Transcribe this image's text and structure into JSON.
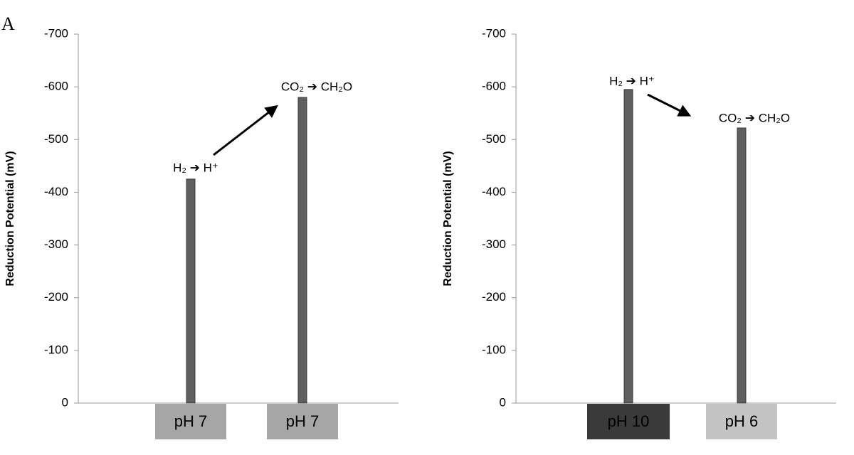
{
  "panel_label": "A",
  "chart_data": [
    {
      "type": "bar",
      "y_label": "Reduction Potential (mV)",
      "categories": [
        "pH 7",
        "pH 7"
      ],
      "values": [
        -425,
        -580
      ],
      "category_colors": [
        "#a6a6a6",
        "#a6a6a6"
      ],
      "category_text_colors": [
        "#000000",
        "#000000"
      ],
      "color": "#5f5f5f",
      "ylim": [
        0,
        -700
      ],
      "yticks": [
        0,
        -100,
        -200,
        -300,
        -400,
        -500,
        -600,
        -700
      ],
      "annotations": [
        "H₂ ➔ H⁺",
        "CO₂ ➔ CH₂O"
      ]
    },
    {
      "type": "bar",
      "y_label": "Reduction Potential (mV)",
      "categories": [
        "pH 10",
        "pH 6"
      ],
      "values": [
        -595,
        -522
      ],
      "category_colors": [
        "#3a3a3a",
        "#c4c4c4"
      ],
      "category_text_colors": [
        "#ffffff",
        "#000000"
      ],
      "color": "#5f5f5f",
      "ylim": [
        0,
        -700
      ],
      "yticks": [
        0,
        -100,
        -200,
        -300,
        -400,
        -500,
        -600,
        -700
      ],
      "annotations": [
        "H₂ ➔ H⁺",
        "CO₂ ➔ CH₂O"
      ]
    }
  ]
}
